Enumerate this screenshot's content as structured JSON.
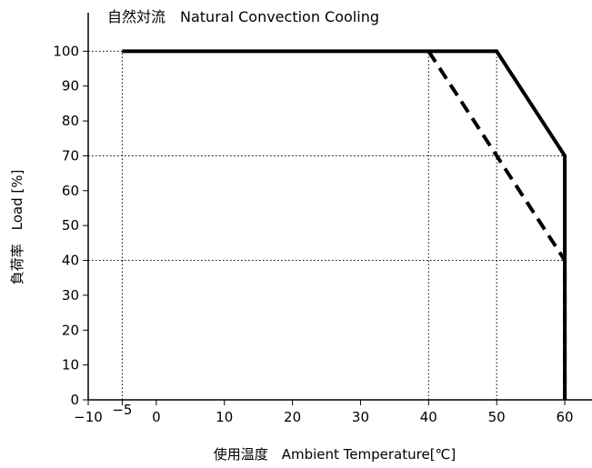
{
  "chart_data": {
    "type": "line",
    "title": "自然対流　Natural Convection Cooling",
    "xlabel": "使用温度　Ambient Temperature[℃]",
    "ylabel": "負荷率　Load [%]",
    "xlim": [
      -10,
      64
    ],
    "ylim": [
      0,
      110
    ],
    "x_ticks": [
      -10,
      -5,
      0,
      10,
      20,
      30,
      40,
      50,
      60
    ],
    "y_ticks": [
      0,
      10,
      20,
      30,
      40,
      50,
      60,
      70,
      80,
      90,
      100
    ],
    "series": [
      {
        "style": "solid",
        "color": "#000000",
        "x": [
          -5,
          50,
          60,
          60
        ],
        "y": [
          100,
          100,
          70,
          0
        ]
      },
      {
        "style": "dashed",
        "color": "#000000",
        "x": [
          40,
          60,
          60
        ],
        "y": [
          100,
          40,
          0
        ]
      }
    ],
    "reference_lines": {
      "vertical_x": [
        -5,
        40,
        50
      ],
      "horizontal_y": [
        100,
        70,
        40
      ],
      "style": "dotted"
    },
    "grid": false,
    "legend": "none"
  }
}
